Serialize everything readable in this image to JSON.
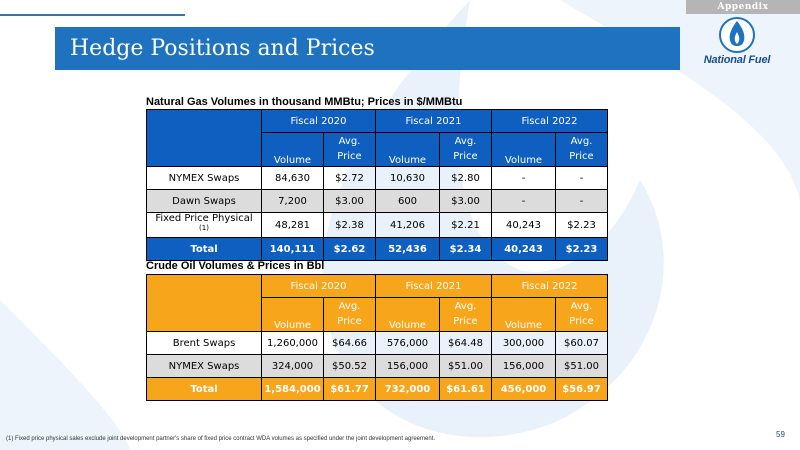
{
  "appendix_tab": "Appendix",
  "title": "Hedge Positions and Prices",
  "logo": {
    "text": "National Fuel",
    "icon": "flame-icon"
  },
  "gas": {
    "title": "Natural Gas Volumes in thousand MMBtu; Prices in $/MMBtu",
    "years": [
      "Fiscal 2020",
      "Fiscal 2021",
      "Fiscal 2022"
    ],
    "col_volume": "Volume",
    "col_avg": "Avg.",
    "col_price": "Price",
    "rows": [
      {
        "label": "NYMEX Swaps",
        "cells": [
          "84,630",
          "$2.72",
          "10,630",
          "$2.80",
          "-",
          "-"
        ]
      },
      {
        "label": "Dawn Swaps",
        "cells": [
          "7,200",
          "$3.00",
          "600",
          "$3.00",
          "-",
          "-"
        ]
      },
      {
        "label": "Fixed Price Physical",
        "note": "(1)",
        "cells": [
          "48,281",
          "$2.38",
          "41,206",
          "$2.21",
          "40,243",
          "$2.23"
        ]
      }
    ],
    "total": {
      "label": "Total",
      "cells": [
        "140,111",
        "$2.62",
        "52,436",
        "$2.34",
        "40,243",
        "$2.23"
      ]
    },
    "color": "#0e5fbf"
  },
  "oil": {
    "title": "Crude Oil Volumes & Prices in Bbl",
    "years": [
      "Fiscal 2020",
      "Fiscal 2021",
      "Fiscal 2022"
    ],
    "col_volume": "Volume",
    "col_avg": "Avg.",
    "col_price": "Price",
    "rows": [
      {
        "label": "Brent Swaps",
        "cells": [
          "1,260,000",
          "$64.66",
          "576,000",
          "$64.48",
          "300,000",
          "$60.07"
        ]
      },
      {
        "label": "NYMEX Swaps",
        "cells": [
          "324,000",
          "$50.52",
          "156,000",
          "$51.00",
          "156,000",
          "$51.00"
        ]
      }
    ],
    "total": {
      "label": "Total",
      "cells": [
        "1,584,000",
        "$61.77",
        "732,000",
        "$61.61",
        "456,000",
        "$56.97"
      ]
    },
    "color": "#f7a61b"
  },
  "footnote": "(1)    Fixed price physical sales exclude joint development partner's share of fixed price contract WDA volumes as specified under the joint development agreement.",
  "page_number": "59"
}
